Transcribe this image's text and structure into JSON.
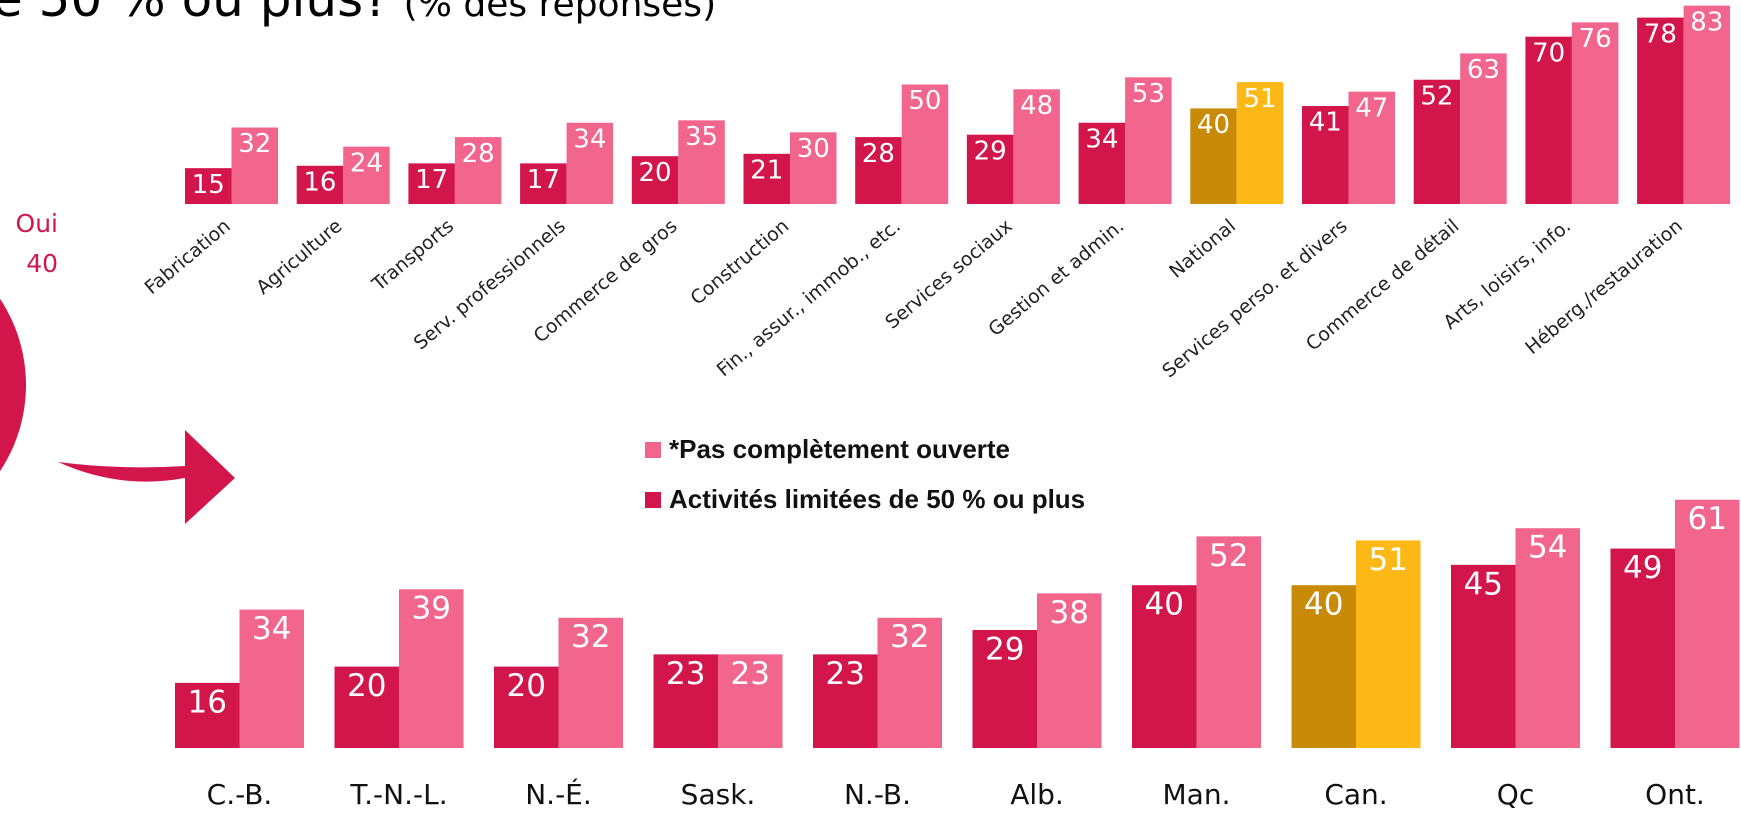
{
  "header": {
    "title": "e 50 % ou plus?",
    "subtitle": "(% des réponses)"
  },
  "pie_annotation": {
    "label": "Oui",
    "value": "40"
  },
  "chart_data": [
    {
      "type": "bar",
      "categories": [
        "Fabrication",
        "Agriculture",
        "Transports",
        "Serv. professionnels",
        "Commerce de gros",
        "Construction",
        "Fin., assur., immob., etc.",
        "Services sociaux",
        "Gestion et admin.",
        "National",
        "Services perso. et divers",
        "Commerce de détail",
        "Arts, loisirs, info.",
        "Héberg./restauration"
      ],
      "series": [
        {
          "name": "Activités limitées de 50 % ou plus",
          "values": [
            15,
            16,
            17,
            17,
            20,
            21,
            28,
            29,
            34,
            40,
            41,
            52,
            70,
            78
          ],
          "colors": [
            "#d2164b",
            "#d2164b",
            "#d2164b",
            "#d2164b",
            "#d2164b",
            "#d2164b",
            "#d2164b",
            "#d2164b",
            "#d2164b",
            "#c98b07",
            "#d2164b",
            "#d2164b",
            "#d2164b",
            "#d2164b"
          ]
        },
        {
          "name": "*Pas complètement ouverte",
          "values": [
            32,
            24,
            28,
            34,
            35,
            30,
            50,
            48,
            53,
            51,
            47,
            63,
            76,
            83
          ],
          "colors": [
            "#f2658c",
            "#f2658c",
            "#f2658c",
            "#f2658c",
            "#f2658c",
            "#f2658c",
            "#f2658c",
            "#f2658c",
            "#f2658c",
            "#fbb817",
            "#f2658c",
            "#f2658c",
            "#f2658c",
            "#f2658c"
          ]
        }
      ]
    },
    {
      "type": "bar",
      "categories": [
        "C.-B.",
        "T.-N.-L.",
        "N.-É.",
        "Sask.",
        "N.-B.",
        "Alb.",
        "Man.",
        "Can.",
        "Qc",
        "Ont."
      ],
      "series": [
        {
          "values": [
            16,
            20,
            20,
            23,
            23,
            29,
            40,
            40,
            45,
            49
          ],
          "colors": [
            "#d2164b",
            "#d2164b",
            "#d2164b",
            "#d2164b",
            "#d2164b",
            "#d2164b",
            "#d2164b",
            "#c98b07",
            "#d2164b",
            "#d2164b"
          ]
        },
        {
          "values": [
            34,
            39,
            32,
            23,
            32,
            38,
            52,
            51,
            54,
            61
          ],
          "colors": [
            "#f2658c",
            "#f2658c",
            "#f2658c",
            "#f2658c",
            "#f2658c",
            "#f2658c",
            "#f2658c",
            "#fbb817",
            "#f2658c",
            "#f2658c"
          ]
        }
      ]
    }
  ]
}
